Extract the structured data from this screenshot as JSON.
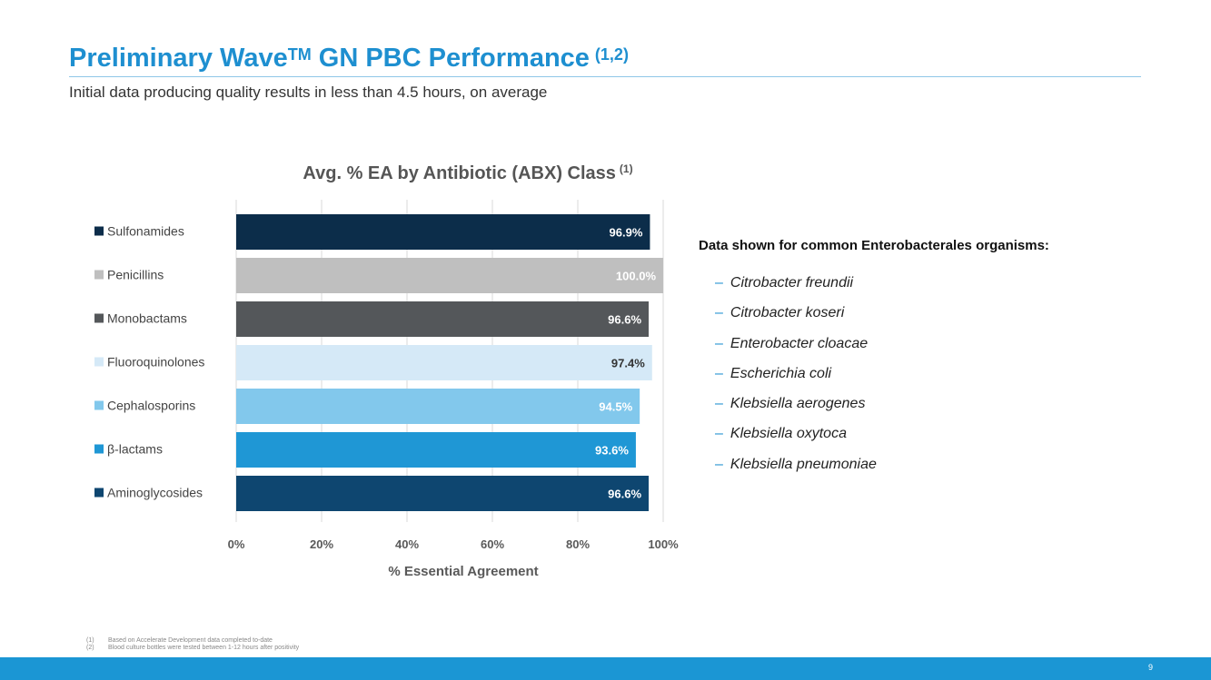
{
  "slide": {
    "title_main": "Preliminary Wave",
    "title_tm": "TM",
    "title_rest": " GN PBC Performance",
    "title_refs": "(1,2)",
    "subtitle": "Initial data producing quality results in less than 4.5 hours, on average"
  },
  "chart_data": {
    "type": "bar",
    "orientation": "horizontal",
    "title": "Avg. % EA by Antibiotic (ABX) Class",
    "title_ref": "(1)",
    "xlabel": "% Essential Agreement",
    "ylabel": "",
    "xlim": [
      0,
      100
    ],
    "xticks": [
      0,
      20,
      40,
      60,
      80,
      100
    ],
    "xtick_labels": [
      "0%",
      "20%",
      "40%",
      "60%",
      "80%",
      "100%"
    ],
    "grid": "vertical",
    "categories": [
      "Sulfonamides",
      "Penicillins",
      "Monobactams",
      "Fluoroquinolones",
      "Cephalosporins",
      "β-lactams",
      "Aminoglycosides"
    ],
    "values": [
      96.9,
      100.0,
      96.6,
      97.4,
      94.5,
      93.6,
      96.6
    ],
    "value_labels": [
      "96.9%",
      "100.0%",
      "96.6%",
      "97.4%",
      "94.5%",
      "93.6%",
      "96.6%"
    ],
    "colors": [
      "#0c2d4a",
      "#bfbfbf",
      "#54575a",
      "#d5e9f7",
      "#82c8ec",
      "#1f97d5",
      "#0e4670"
    ],
    "label_colors": [
      "#ffffff",
      "#ffffff",
      "#ffffff",
      "#333333",
      "#ffffff",
      "#ffffff",
      "#ffffff"
    ],
    "legend": "left"
  },
  "organisms": {
    "heading": "Data shown for common Enterobacterales organisms:",
    "dash": "–",
    "items": [
      "Citrobacter freundii",
      "Citrobacter koseri",
      "Enterobacter cloacae",
      "Escherichia coli",
      "Klebsiella aerogenes",
      "Klebsiella oxytoca",
      "Klebsiella pneumoniae"
    ]
  },
  "footnotes": [
    {
      "num": "(1)",
      "text": "Based on Accelerate Development data completed to-date"
    },
    {
      "num": "(2)",
      "text": "Blood culture bottles were tested between 1-12 hours after positivity"
    }
  ],
  "page_number": "9"
}
